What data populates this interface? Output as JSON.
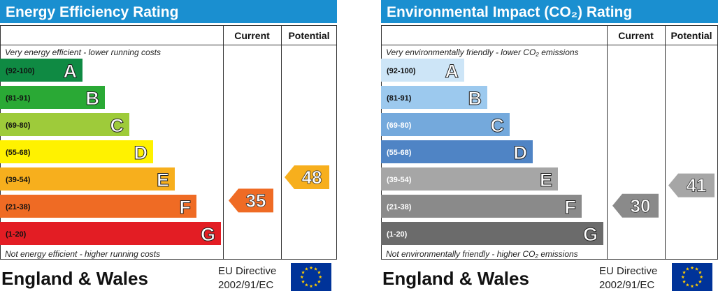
{
  "charts": [
    {
      "id": "energy",
      "title": "Energy Efficiency Rating",
      "header_color": "#1a8fd0",
      "current_label": "Current",
      "potential_label": "Potential",
      "top_note": "Very energy efficient - lower running costs",
      "bottom_note": "Not energy efficient - higher running costs",
      "footer": "England & Wales",
      "directive_line1": "EU Directive",
      "directive_line2": "2002/91/EC",
      "bands": [
        {
          "range": "(92-100)",
          "letter": "A",
          "color": "#0f8a43"
        },
        {
          "range": "(81-91)",
          "letter": "B",
          "color": "#2aa935"
        },
        {
          "range": "(69-80)",
          "letter": "C",
          "color": "#9ecb3a"
        },
        {
          "range": "(55-68)",
          "letter": "D",
          "color": "#fff200"
        },
        {
          "range": "(39-54)",
          "letter": "E",
          "color": "#f7af1d"
        },
        {
          "range": "(21-38)",
          "letter": "F",
          "color": "#ef6b24"
        },
        {
          "range": "(1-20)",
          "letter": "G",
          "color": "#e31d24"
        }
      ],
      "current_value": "35",
      "current_color": "#ef6b24",
      "potential_value": "48",
      "potential_color": "#f7af1d"
    },
    {
      "id": "environment",
      "title": "Environmental Impact (CO₂) Rating",
      "header_color": "#1a8fd0",
      "current_label": "Current",
      "potential_label": "Potential",
      "top_note": "Very environmentally friendly - lower CO₂ emissions",
      "bottom_note": "Not environmentally friendly - higher CO₂ emissions",
      "footer": "England & Wales",
      "directive_line1": "EU Directive",
      "directive_line2": "2002/91/EC",
      "bands": [
        {
          "range": "(92-100)",
          "letter": "A",
          "color": "#cde5f7"
        },
        {
          "range": "(81-91)",
          "letter": "B",
          "color": "#9cc9ee"
        },
        {
          "range": "(69-80)",
          "letter": "C",
          "color": "#74a9dc"
        },
        {
          "range": "(55-68)",
          "letter": "D",
          "color": "#4f84c5"
        },
        {
          "range": "(39-54)",
          "letter": "E",
          "color": "#a6a6a6"
        },
        {
          "range": "(21-38)",
          "letter": "F",
          "color": "#8a8a8a"
        },
        {
          "range": "(1-20)",
          "letter": "G",
          "color": "#6b6b6b"
        }
      ],
      "current_value": "30",
      "current_color": "#8a8a8a",
      "potential_value": "41",
      "potential_color": "#a6a6a6"
    }
  ],
  "chart_data": [
    {
      "type": "table",
      "title": "Energy Efficiency Rating",
      "categories": [
        "A",
        "B",
        "C",
        "D",
        "E",
        "F",
        "G"
      ],
      "ranges": [
        "92-100",
        "81-91",
        "69-80",
        "55-68",
        "39-54",
        "21-38",
        "1-20"
      ],
      "series": [
        {
          "name": "Current",
          "value": 35,
          "band": "F"
        },
        {
          "name": "Potential",
          "value": 48,
          "band": "E"
        }
      ]
    },
    {
      "type": "table",
      "title": "Environmental Impact (CO₂) Rating",
      "categories": [
        "A",
        "B",
        "C",
        "D",
        "E",
        "F",
        "G"
      ],
      "ranges": [
        "92-100",
        "81-91",
        "69-80",
        "55-68",
        "39-54",
        "21-38",
        "1-20"
      ],
      "series": [
        {
          "name": "Current",
          "value": 30,
          "band": "F"
        },
        {
          "name": "Potential",
          "value": 41,
          "band": "E"
        }
      ]
    }
  ]
}
